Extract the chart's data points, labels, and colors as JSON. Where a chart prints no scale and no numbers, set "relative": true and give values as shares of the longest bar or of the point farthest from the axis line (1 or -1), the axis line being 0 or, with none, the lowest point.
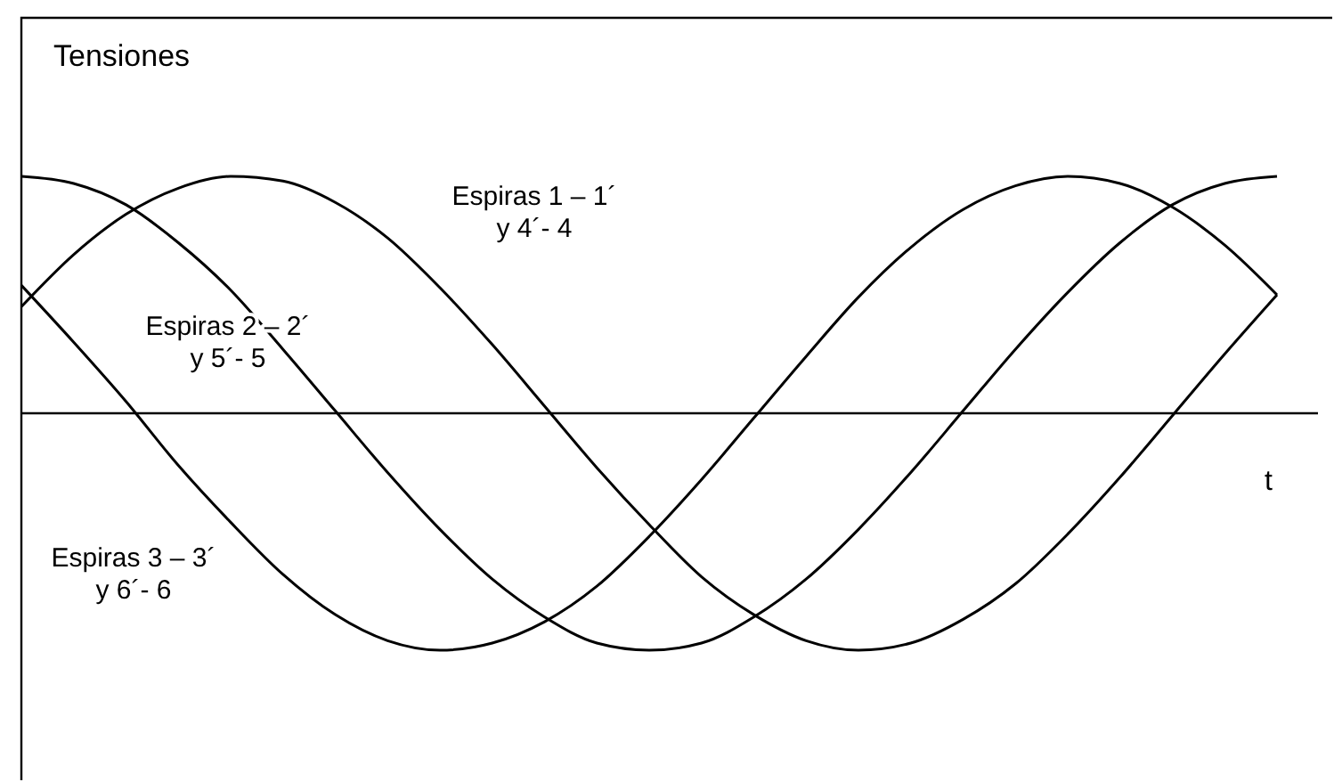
{
  "chart_data": {
    "type": "line",
    "relative": true,
    "title": "Tensiones",
    "xlabel": "t",
    "categories": [
      null,
      null,
      null,
      null,
      null,
      null,
      null,
      null,
      null,
      null,
      null,
      null,
      null,
      null,
      null,
      null,
      null,
      null,
      null,
      null,
      null,
      null,
      null,
      null,
      null
    ],
    "series": [
      {
        "name": "Espiras 1 – 1´\ny 4´- 4",
        "color": "#000000",
        "values": [
          0.45,
          0.67,
          0.84,
          0.95,
          1.0,
          0.98,
          0.89,
          0.74,
          0.53,
          0.29,
          0.03,
          -0.23,
          -0.47,
          -0.69,
          -0.85,
          -0.96,
          -1.0,
          -0.97,
          -0.87,
          -0.72,
          -0.51,
          -0.27,
          -0.01,
          0.25,
          0.5
        ]
      },
      {
        "name": "Espiras 2 – 2´\ny 5´- 5",
        "color": "#000000",
        "values": [
          1.0,
          0.97,
          0.88,
          0.72,
          0.52,
          0.27,
          0.01,
          -0.25,
          -0.49,
          -0.7,
          -0.86,
          -0.97,
          -1.0,
          -0.97,
          -0.86,
          -0.7,
          -0.49,
          -0.25,
          0.01,
          0.27,
          0.51,
          0.72,
          0.88,
          0.97,
          1.0
        ]
      },
      {
        "name": "Espiras 3 – 3´\ny 6´- 6",
        "color": "#000000",
        "values": [
          0.54,
          0.3,
          0.05,
          -0.22,
          -0.46,
          -0.68,
          -0.85,
          -0.96,
          -1.0,
          -0.97,
          -0.88,
          -0.73,
          -0.52,
          -0.28,
          -0.02,
          0.24,
          0.49,
          0.7,
          0.86,
          0.96,
          1.0,
          0.97,
          0.87,
          0.71,
          0.5
        ]
      }
    ],
    "line_style": "solid",
    "marker": "none",
    "legend": false,
    "grid": false
  }
}
